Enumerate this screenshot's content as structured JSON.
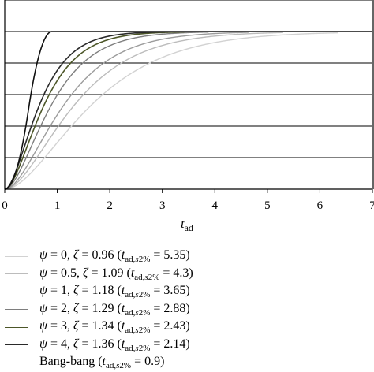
{
  "chart_data": {
    "type": "line",
    "xlabel": "t_ad",
    "xlabel_main": "t",
    "xlabel_sub": "ad",
    "x_ticks": [
      "0",
      "1",
      "2",
      "3",
      "4",
      "5",
      "6",
      "7"
    ],
    "xlim": [
      0,
      7
    ],
    "ylim": [
      0,
      1.2
    ],
    "grid": "horizontal",
    "legend_position": "bottom",
    "series": [
      {
        "name": "ψ = 0, ζ = 0.96 (t_ad,s2% = 5.35)",
        "color": "#d2d2d2",
        "settling": 5.35,
        "width": 1.4
      },
      {
        "name": "ψ = 0.5, ζ = 1.09 (t_ad,s2% = 4.3)",
        "color": "#bcbcbc",
        "settling": 4.3,
        "width": 1.4
      },
      {
        "name": "ψ = 1, ζ = 1.18 (t_ad,s2% = 3.65)",
        "color": "#9c9c9c",
        "settling": 3.65,
        "width": 1.4
      },
      {
        "name": "ψ = 2, ζ = 1.29 (t_ad,s2% = 2.88)",
        "color": "#7e7e7e",
        "settling": 2.88,
        "width": 1.4
      },
      {
        "name": "ψ = 3, ζ = 1.34 (t_ad,s2% = 2.43)",
        "color": "#4c5628",
        "settling": 2.43,
        "width": 1.6
      },
      {
        "name": "ψ = 4, ζ = 1.36 (t_ad,s2% = 2.14)",
        "color": "#2a2a2a",
        "settling": 2.14,
        "width": 1.6
      },
      {
        "name": "Bang-bang (t_ad,s2% = 0.9)",
        "color": "#111111",
        "settling": 0.9,
        "width": 1.6,
        "bang_bang": true
      }
    ]
  }
}
